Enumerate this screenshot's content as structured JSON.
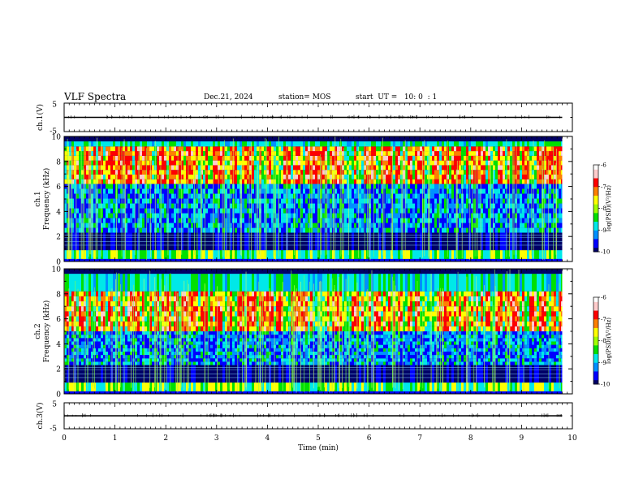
{
  "header": {
    "title": "VLF Spectra",
    "date": "Dec.21, 2024",
    "station": "station= MOS",
    "start_ut": "start  UT =   10: 0  : 1"
  },
  "chart_data": [
    {
      "type": "line",
      "panel": "ch1-waveform",
      "ylabel": "ch.1(V)",
      "ylim": [
        -5,
        5
      ],
      "yticks": [
        "5",
        "-5"
      ],
      "baseline": 0,
      "xlim": [
        0,
        10
      ]
    },
    {
      "type": "heatmap",
      "panel": "ch1-spectrogram",
      "ylabel_line1": "ch.1",
      "ylabel_line2": "Frequency  (kHz)",
      "ylim": [
        0,
        10
      ],
      "yticks": [
        "0",
        "2",
        "4",
        "6",
        "8",
        "10"
      ],
      "xlim": [
        0,
        9.8
      ],
      "colorbar": {
        "label": "log(PSD)(V²/Hz)",
        "range": [
          -10,
          -6
        ],
        "ticks": [
          "-6",
          "-7",
          "-8",
          "-9",
          "-10"
        ]
      },
      "emission_band_khz": [
        6.2,
        9.2
      ]
    },
    {
      "type": "heatmap",
      "panel": "ch2-spectrogram",
      "ylabel_line1": "ch.2",
      "ylabel_line2": "Frequency  (kHz)",
      "ylim": [
        0,
        10
      ],
      "yticks": [
        "0",
        "2",
        "4",
        "6",
        "8",
        "10"
      ],
      "xlim": [
        0,
        9.8
      ],
      "colorbar": {
        "label": "log(PSD)(V²/Hz)",
        "range": [
          -10,
          -6
        ],
        "ticks": [
          "-6",
          "-7",
          "-8",
          "-9",
          "-10"
        ]
      },
      "emission_band_khz": [
        5.0,
        8.2
      ]
    },
    {
      "type": "line",
      "panel": "ch3-waveform",
      "ylabel": "ch.3(V)",
      "ylim": [
        -5,
        5
      ],
      "yticks": [
        "5",
        "-5"
      ],
      "baseline": 0,
      "xlim": [
        0,
        10
      ]
    }
  ],
  "x_axis": {
    "label": "Time  (min)",
    "ticks": [
      "0",
      "1",
      "2",
      "3",
      "4",
      "5",
      "6",
      "7",
      "8",
      "9",
      "10"
    ],
    "range": [
      0,
      10
    ]
  },
  "colors": {
    "ink": "#000000",
    "colormap": [
      "#000066",
      "#0000ff",
      "#0090ff",
      "#00e8e8",
      "#00e000",
      "#ffff00",
      "#ff8000",
      "#ff0000",
      "#ffcccc"
    ]
  }
}
